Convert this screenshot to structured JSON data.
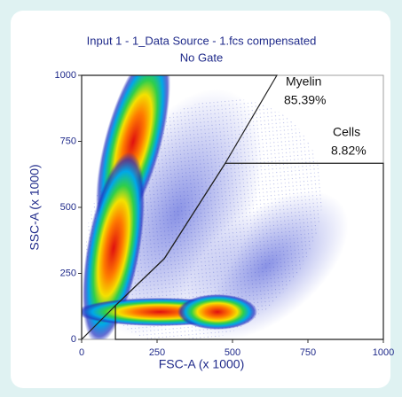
{
  "chart_data": {
    "type": "density",
    "title": "Input 1 - 1_Data Source - 1.fcs compensated",
    "subtitle": "No Gate",
    "x_label": "FSC-A (x 1000)",
    "y_label": "SSC-A (x 1000)",
    "xlim": [
      0,
      1000
    ],
    "xticks": [
      0,
      250,
      500,
      750,
      1000
    ],
    "ylim": [
      0,
      1000
    ],
    "yticks": [
      0,
      250,
      500,
      750,
      1000
    ],
    "gates": [
      {
        "name": "Myelin",
        "value": 85.39,
        "value_label": "85.39%",
        "color": "#222222",
        "x": [
          0,
          112,
          274,
          476,
          647,
          0
        ],
        "y": [
          0,
          128,
          306,
          667,
          1000,
          1000
        ]
      },
      {
        "name": "Cells",
        "value": 8.82,
        "value_label": "8.82%",
        "color": "#222222",
        "x": [
          112,
          112,
          274,
          476,
          1000,
          1000
        ],
        "y": [
          0,
          128,
          306,
          667,
          667,
          0
        ]
      }
    ]
  }
}
